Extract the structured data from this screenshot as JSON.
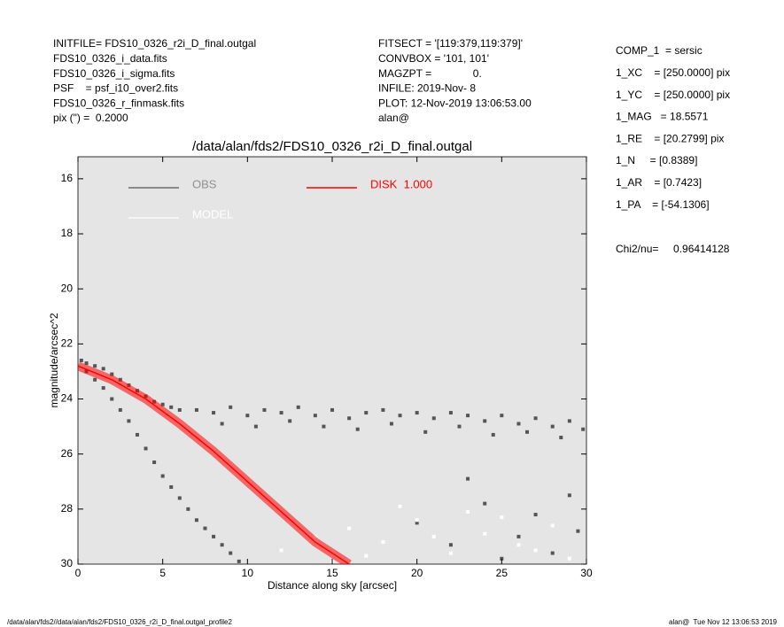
{
  "header": {
    "left": [
      "INITFILE= FDS10_0326_r2i_D_final.outgal",
      "FDS10_0326_i_data.fits",
      "FDS10_0326_i_sigma.fits",
      "PSF    = psf_i10_over2.fits",
      "FDS10_0326_r_finmask.fits",
      "pix (\") =  0.2000"
    ],
    "middle": [
      "FITSECT = '[119:379,119:379]'",
      "CONVBOX = '101, 101'",
      "MAGZPT =              0.",
      "INFILE: 2019-Nov- 8",
      "PLOT: 12-Nov-2019 13:06:53.00",
      "alan@"
    ],
    "right": [
      "COMP_1  = sersic",
      "1_XC    = [250.0000] pix",
      "1_YC    = [250.0000] pix",
      "1_MAG   = 18.5571",
      "1_RE    = [20.2799] pix",
      "1_N     = [0.8389]",
      "1_AR    = [0.7423]",
      "1_PA    = [-54.1306]"
    ],
    "chi2": "Chi2/nu=     0.96414128"
  },
  "footer": {
    "left": "/data/alan/fds2//data/alan/fds2/FDS10_0326_r2i_D_final.outgal_profile2",
    "right": "alan@  Tue Nov 12 13:06:53 2019"
  },
  "chart_data": {
    "type": "scatter",
    "title": "/data/alan/fds2/FDS10_0326_r2i_D_final.outgal",
    "x_label": "Distance along sky [arcsec]",
    "y_label": "magnitude/arcsec^2",
    "xlim": [
      0,
      30
    ],
    "ylim": [
      30,
      15.2
    ],
    "xticks": [
      0,
      5,
      10,
      15,
      20,
      25,
      30
    ],
    "yticks": [
      16,
      18,
      20,
      22,
      24,
      26,
      28,
      30
    ],
    "background": "#e5e5e5",
    "series": [
      {
        "name": "OBS",
        "color": "#555555",
        "x": [
          0.2,
          0.5,
          1,
          1.5,
          2,
          2.5,
          3,
          3.5,
          4,
          4.5,
          5,
          5.5,
          6,
          7,
          8,
          9,
          10,
          11,
          12,
          13,
          14,
          15,
          16,
          17,
          18,
          19,
          20,
          21,
          22,
          23,
          24,
          25,
          26,
          27,
          28,
          29,
          29.8,
          8.5,
          10.5,
          12.5,
          14.5,
          16.5,
          18.5,
          20.5,
          22.5,
          24.5,
          26.5,
          28.5,
          0.5,
          1,
          1.5,
          2,
          2.5,
          3,
          3.5,
          4,
          4.5,
          5,
          5.5,
          6,
          6.5,
          7,
          7.5,
          8,
          8.5,
          9,
          9.5,
          20,
          22,
          24,
          26,
          27,
          28,
          29,
          29.5,
          25,
          23
        ],
        "values": [
          22.6,
          22.7,
          22.8,
          22.9,
          23.1,
          23.3,
          23.5,
          23.7,
          23.9,
          24.1,
          24.2,
          24.3,
          24.4,
          24.4,
          24.5,
          24.3,
          24.6,
          24.4,
          24.5,
          24.3,
          24.6,
          24.4,
          24.7,
          24.5,
          24.4,
          24.6,
          24.5,
          24.7,
          24.5,
          24.6,
          24.8,
          24.6,
          24.9,
          24.7,
          25.0,
          24.8,
          25.1,
          24.9,
          25.0,
          24.8,
          25.0,
          25.1,
          24.9,
          25.2,
          25.0,
          25.3,
          25.2,
          25.4,
          23.0,
          23.3,
          23.6,
          24.0,
          24.4,
          24.8,
          25.3,
          25.8,
          26.3,
          26.8,
          27.2,
          27.6,
          28.0,
          28.4,
          28.7,
          29.0,
          29.3,
          29.6,
          29.9,
          28.5,
          29.3,
          27.8,
          29.0,
          28.2,
          29.6,
          27.5,
          28.8,
          29.8,
          26.9
        ]
      },
      {
        "name": "MODEL",
        "color": "#ffffff",
        "x": [
          12,
          14,
          16,
          18,
          20,
          22,
          24,
          26,
          28,
          29,
          15,
          19,
          23,
          27,
          17,
          21,
          25
        ],
        "values": [
          29.5,
          29.0,
          28.7,
          29.2,
          28.4,
          29.6,
          28.9,
          29.3,
          28.6,
          29.8,
          29.9,
          27.9,
          28.1,
          29.5,
          29.7,
          29.0,
          28.3
        ]
      },
      {
        "name": "DISK  1.000",
        "color": "#ff0000",
        "type": "line",
        "x": [
          0,
          2,
          4,
          6,
          8,
          10,
          12,
          14,
          16
        ],
        "values": [
          22.8,
          23.3,
          24.0,
          24.9,
          25.9,
          27.0,
          28.1,
          29.2,
          30.0
        ]
      }
    ]
  }
}
